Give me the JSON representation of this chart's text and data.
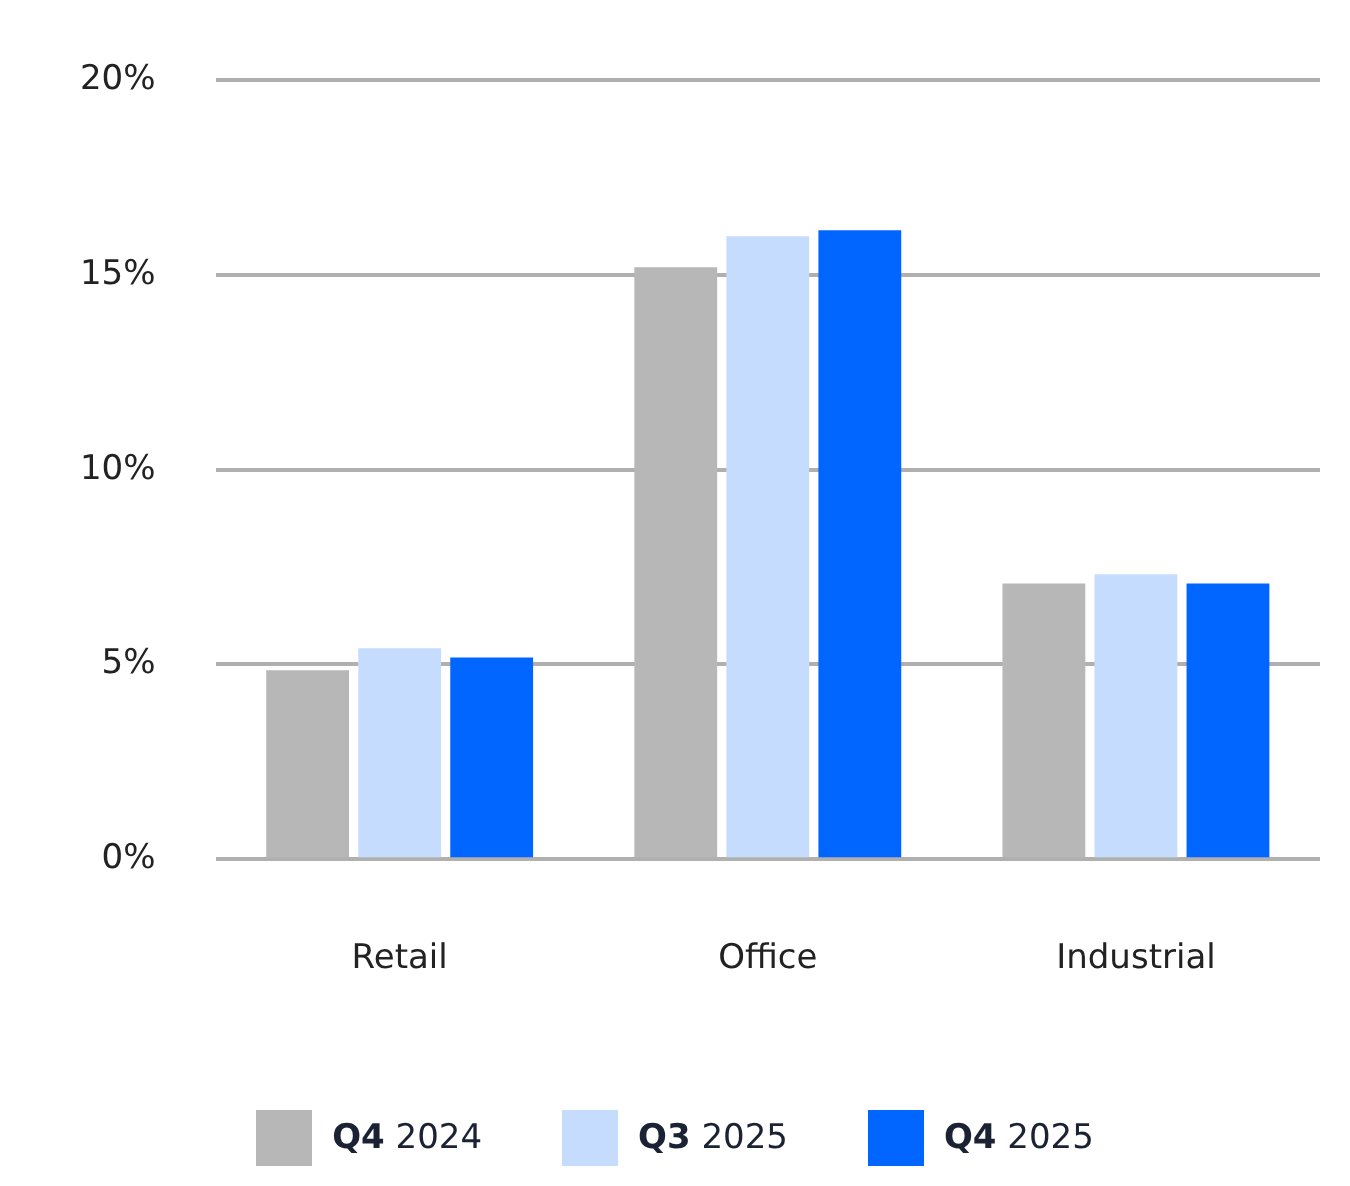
{
  "chart_data": {
    "type": "bar",
    "categories": [
      "Retail",
      "Office",
      "Industrial"
    ],
    "series": [
      {
        "name": "Q4 2024",
        "color": "#b7b7b7",
        "values": [
          4.85,
          15.2,
          7.08
        ]
      },
      {
        "name": "Q3 2025",
        "color": "#c5dcff",
        "values": [
          5.42,
          16.0,
          7.32
        ]
      },
      {
        "name": "Q4 2025",
        "color": "#0066ff",
        "values": [
          5.18,
          16.15,
          7.08
        ]
      }
    ],
    "ylim": [
      0,
      20
    ],
    "yticks": [
      {
        "value": 0,
        "label": "0%"
      },
      {
        "value": 5,
        "label": "5%"
      },
      {
        "value": 10,
        "label": "10%"
      },
      {
        "value": 15,
        "label": "15%"
      },
      {
        "value": 20,
        "label": "20%"
      }
    ],
    "grid": "y",
    "legend": "bottom"
  }
}
